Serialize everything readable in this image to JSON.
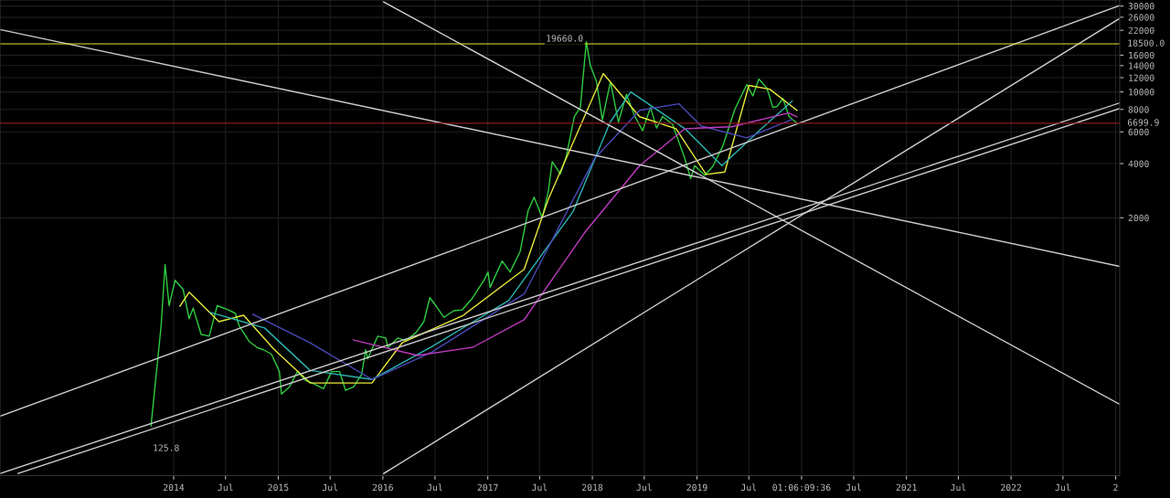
{
  "chart_data": {
    "type": "line",
    "log": "y",
    "grid": true,
    "legend": false,
    "ylim": [
      74,
      32400
    ],
    "yticks": [
      2000,
      4000,
      6000,
      8000,
      10000,
      12000,
      14000,
      16000,
      22000,
      26000,
      30000
    ],
    "xlim": [
      "2012-05-05",
      "2023-01-15"
    ],
    "xticks": [
      {
        "value": "2014-01-01",
        "label": "2014"
      },
      {
        "value": "2014-07-01",
        "label": "Jul"
      },
      {
        "value": "2015-01-01",
        "label": "2015"
      },
      {
        "value": "2015-07-01",
        "label": "Jul"
      },
      {
        "value": "2016-01-01",
        "label": "2016"
      },
      {
        "value": "2016-07-01",
        "label": "Jul"
      },
      {
        "value": "2017-01-01",
        "label": "2017"
      },
      {
        "value": "2017-07-01",
        "label": "Jul"
      },
      {
        "value": "2018-01-01",
        "label": "2018"
      },
      {
        "value": "2018-07-01",
        "label": "Jul"
      },
      {
        "value": "2019-01-01",
        "label": "2019"
      },
      {
        "value": "2019-07-01",
        "label": "Jul"
      },
      {
        "value": "2020-01-01",
        "label": "01:06:09:36"
      },
      {
        "value": "2020-07-01",
        "label": "Jul"
      },
      {
        "value": "2021-01-01",
        "label": "2021"
      },
      {
        "value": "2021-07-01",
        "label": "Jul"
      },
      {
        "value": "2022-01-01",
        "label": "2022"
      },
      {
        "value": "2022-07-01",
        "label": "Jul"
      },
      {
        "value": "2023-01-01",
        "label": "2"
      }
    ],
    "ref_lines": [
      {
        "axis": "y",
        "value": 6699.9,
        "label": "6699.9",
        "color": "#8b1a1a"
      },
      {
        "axis": "y",
        "value": 18500.0,
        "label": "18500.0",
        "color": "#e6e62e"
      }
    ],
    "annotations": [
      {
        "text": "19660.0",
        "x": "2017-12-18",
        "y": 19660
      },
      {
        "text": "125.8",
        "x": "2013-10-20",
        "y": 125.8
      }
    ],
    "series": [
      {
        "color": "#2ecc40",
        "x": [
          "2013-10-14",
          "2013-11-04",
          "2013-11-18",
          "2013-12-02",
          "2013-12-16",
          "2014-01-06",
          "2014-02-03",
          "2014-02-24",
          "2014-03-10",
          "2014-04-07",
          "2014-05-05",
          "2014-06-02",
          "2014-07-07",
          "2014-08-04",
          "2014-08-18",
          "2014-09-22",
          "2014-10-20",
          "2014-11-10",
          "2014-12-08",
          "2015-01-05",
          "2015-01-12",
          "2015-02-09",
          "2015-03-09",
          "2015-04-06",
          "2015-05-04",
          "2015-06-08",
          "2015-07-06",
          "2015-08-03",
          "2015-08-24",
          "2015-09-21",
          "2015-10-19",
          "2015-11-02",
          "2015-11-09",
          "2015-12-14",
          "2016-01-11",
          "2016-01-18",
          "2016-02-22",
          "2016-03-21",
          "2016-04-25",
          "2016-05-23",
          "2016-06-13",
          "2016-07-04",
          "2016-08-01",
          "2016-09-05",
          "2016-10-03",
          "2016-11-07",
          "2016-12-19",
          "2017-01-02",
          "2017-01-09",
          "2017-02-20",
          "2017-03-20",
          "2017-04-24",
          "2017-05-22",
          "2017-06-12",
          "2017-07-10",
          "2017-07-31",
          "2017-08-14",
          "2017-09-11",
          "2017-10-02",
          "2017-10-30",
          "2017-11-20",
          "2017-12-11",
          "2017-12-25",
          "2018-01-15",
          "2018-02-05",
          "2018-03-05",
          "2018-04-02",
          "2018-04-30",
          "2018-05-28",
          "2018-06-25",
          "2018-07-23",
          "2018-08-13",
          "2018-09-03",
          "2018-10-08",
          "2018-11-19",
          "2018-12-10",
          "2018-12-24",
          "2019-01-28",
          "2019-02-25",
          "2019-04-01",
          "2019-05-13",
          "2019-06-24",
          "2019-07-15",
          "2019-08-05",
          "2019-09-02",
          "2019-09-23",
          "2019-10-07",
          "2019-10-28",
          "2019-11-18",
          "2019-12-16"
        ],
        "values": [
          140,
          300,
          500,
          1100,
          650,
          900,
          800,
          550,
          630,
          450,
          440,
          650,
          620,
          590,
          500,
          410,
          380,
          370,
          350,
          280,
          210,
          230,
          280,
          250,
          240,
          225,
          280,
          280,
          220,
          230,
          270,
          370,
          330,
          440,
          430,
          380,
          430,
          415,
          460,
          530,
          720,
          650,
          560,
          610,
          615,
          710,
          900,
          1000,
          820,
          1150,
          1000,
          1300,
          2200,
          2600,
          2000,
          2800,
          4100,
          3500,
          4400,
          7300,
          8200,
          19000,
          14000,
          11500,
          7000,
          11400,
          6800,
          9700,
          7400,
          6100,
          8200,
          6300,
          7300,
          6600,
          4300,
          3300,
          3900,
          3450,
          3850,
          5000,
          8000,
          11000,
          9500,
          11800,
          10500,
          8200,
          8300,
          9200,
          7300,
          6700
        ]
      },
      {
        "color": "#e8e83a",
        "x": [
          "2014-01-23",
          "2014-02-24",
          "2014-06-08",
          "2014-09-02",
          "2014-12-17",
          "2015-04-22",
          "2015-11-24",
          "2016-03-08",
          "2016-10-08",
          "2017-05-08",
          "2017-07-31",
          "2018-02-08",
          "2018-06-15",
          "2018-10-20",
          "2019-02-02",
          "2019-04-08",
          "2019-07-01",
          "2019-09-12",
          "2019-12-16"
        ],
        "values": [
          647,
          772,
          530,
          575,
          372,
          242,
          242,
          404,
          575,
          1035,
          2530,
          12640,
          7280,
          6250,
          3480,
          3590,
          10860,
          10350,
          7900
        ]
      },
      {
        "color": "#2bb5b5",
        "x": [
          "2014-05-08",
          "2014-11-14",
          "2015-04-22",
          "2015-11-24",
          "2016-06-21",
          "2017-03-15",
          "2017-10-26",
          "2018-03-04",
          "2018-05-15",
          "2018-11-20",
          "2019-03-29",
          "2019-08-14",
          "2019-11-29"
        ],
        "values": [
          597,
          489,
          284,
          253,
          386,
          695,
          2170,
          6790,
          10000,
          6250,
          3900,
          6250,
          8890
        ]
      },
      {
        "color": "#4a4ab8",
        "x": [
          "2014-10-04",
          "2015-04-22",
          "2015-11-24",
          "2016-06-21",
          "2017-05-08",
          "2018-01-08",
          "2018-06-15",
          "2018-10-30",
          "2019-01-15",
          "2019-06-24",
          "2019-11-29"
        ],
        "values": [
          582,
          404,
          253,
          360,
          755,
          4250,
          7900,
          8590,
          6480,
          5560,
          7040
        ]
      },
      {
        "color": "#c03cc0",
        "x": [
          "2015-09-20",
          "2016-05-01",
          "2016-11-10",
          "2017-05-08",
          "2017-12-05",
          "2018-06-15",
          "2018-11-20",
          "2019-05-01",
          "2019-11-17",
          "2019-12-16"
        ],
        "values": [
          419,
          344,
          382,
          543,
          1655,
          3900,
          6250,
          6400,
          7640,
          7280
        ]
      },
      {
        "color": "#cccccc",
        "x": [
          "2012-05-05",
          "2023-01-15"
        ],
        "values": [
          158,
          30200
        ]
      },
      {
        "color": "#cccccc",
        "x": [
          "2012-05-05",
          "2023-01-15"
        ],
        "values": [
          76,
          8690
        ]
      },
      {
        "color": "#cccccc",
        "x": [
          "2012-07-07",
          "2023-01-15"
        ],
        "values": [
          76,
          8090
        ]
      },
      {
        "color": "#cccccc",
        "x": [
          "2012-05-05",
          "2023-01-15"
        ],
        "values": [
          22200,
          1075
        ]
      },
      {
        "color": "#cccccc",
        "x": [
          "2016-01-04",
          "2023-01-15"
        ],
        "values": [
          31600,
          184
        ]
      },
      {
        "color": "#cccccc",
        "x": [
          "2016-01-04",
          "2023-01-15"
        ],
        "values": [
          76,
          25600
        ]
      }
    ]
  }
}
